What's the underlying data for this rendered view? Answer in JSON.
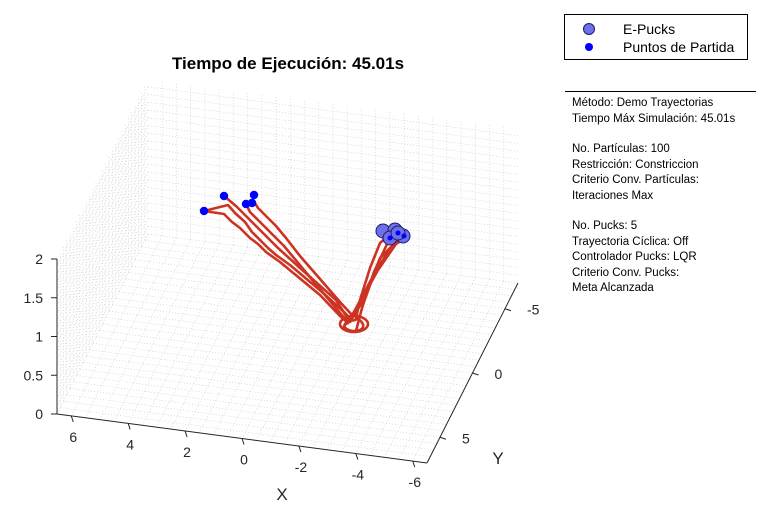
{
  "title": "Tiempo de Ejecución: 45.01s",
  "legend": {
    "items": [
      {
        "label": "E-Pucks",
        "marker": "circle-outline",
        "color": "#6f6fe8",
        "edge": "#1b1b6e"
      },
      {
        "label": "Puntos de Partida",
        "marker": "dot",
        "color": "#0000ff"
      }
    ]
  },
  "info": {
    "lines": [
      "Método: Demo Trayectorias",
      "Tiempo Máx Simulación: 45.01s",
      "",
      "No. Partículas: 100",
      "Restricción: Constriccion",
      "Criterio Conv. Partículas:",
      "Iteraciones Max",
      "",
      "No. Pucks: 5",
      "Trayectoria Cíclica: Off",
      "Controlador Pucks: LQR",
      "Criterio Conv. Pucks:",
      "Meta Alcanzada"
    ]
  },
  "chart_data": {
    "type": "line3d",
    "title": "Tiempo de Ejecución: 45.01s",
    "xlabel": "X",
    "ylabel": "Y",
    "zlabel": "",
    "x_ticks": [
      "6",
      "4",
      "2",
      "0",
      "-2",
      "-4",
      "-6"
    ],
    "y_ticks": [
      "-5",
      "0",
      "5"
    ],
    "z_ticks": [
      "0",
      "0.5",
      "1",
      "1.5",
      "2"
    ],
    "xlim": [
      -6.5,
      6.5
    ],
    "ylim": [
      -7,
      7
    ],
    "zlim": [
      0,
      2
    ],
    "grid": true,
    "legend_location": "top-right",
    "series": [
      {
        "name": "E-Pucks",
        "type": "scatter",
        "color": "#6f6fe8",
        "points": [
          [
            -4.2,
            -5.8,
            0
          ],
          [
            -4.6,
            -5.6,
            0
          ],
          [
            -4.9,
            -5.3,
            0
          ],
          [
            -4.3,
            -5.0,
            0
          ],
          [
            -4.8,
            -4.9,
            0
          ]
        ]
      },
      {
        "name": "Puntos de Partida",
        "type": "scatter",
        "color": "#0000ff",
        "points": [
          [
            1.6,
            -5.5,
            0
          ],
          [
            0.6,
            -5.4,
            0
          ],
          [
            0.7,
            -4.6,
            0
          ],
          [
            1.2,
            -4.0,
            0
          ],
          [
            3.4,
            -3.2,
            0
          ]
        ]
      }
    ],
    "trajectories": {
      "color": "#cc3322",
      "count": 5
    }
  }
}
